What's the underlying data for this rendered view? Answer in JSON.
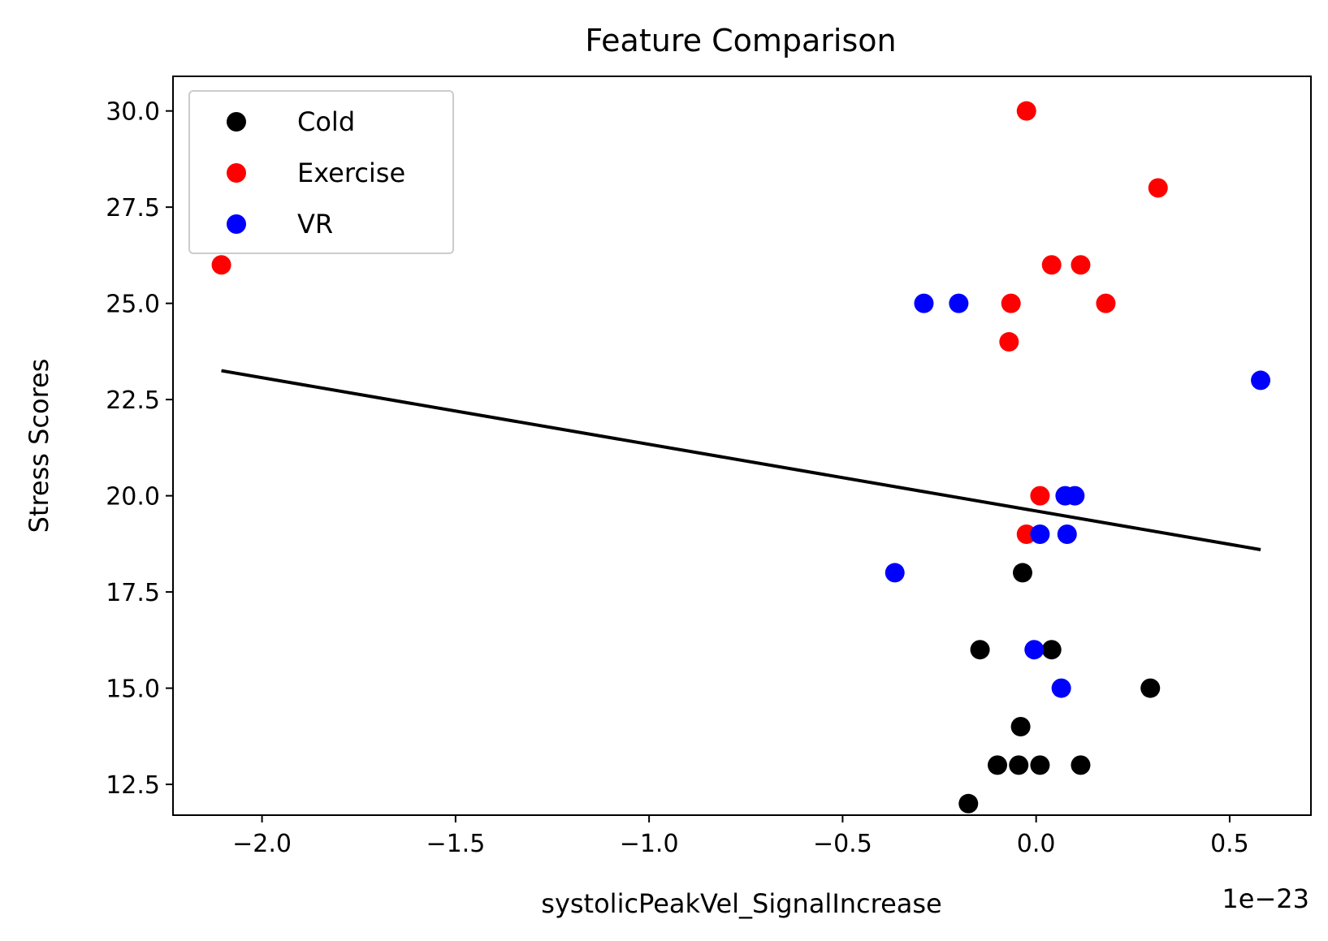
{
  "chart_data": {
    "type": "scatter",
    "title": "Feature Comparison",
    "xlabel": "systolicPeakVel_SignalIncrease",
    "ylabel": "Stress Scores",
    "x_offset_label": "1e−23",
    "xlim": [
      -2.23,
      0.71
    ],
    "ylim": [
      11.7,
      30.9
    ],
    "xticks": [
      -2.0,
      -1.5,
      -1.0,
      -0.5,
      0.0,
      0.5
    ],
    "xtick_labels": [
      "−2.0",
      "−1.5",
      "−1.0",
      "−0.5",
      "0.0",
      "0.5"
    ],
    "yticks": [
      12.5,
      15.0,
      17.5,
      20.0,
      22.5,
      25.0,
      27.5,
      30.0
    ],
    "ytick_labels": [
      "12.5",
      "15.0",
      "17.5",
      "20.0",
      "22.5",
      "25.0",
      "27.5",
      "30.0"
    ],
    "grid": false,
    "legend_position": "top-left",
    "series": [
      {
        "name": "Cold",
        "color": "#000000",
        "points": [
          {
            "x": -0.035,
            "y": 18
          },
          {
            "x": -0.145,
            "y": 16
          },
          {
            "x": 0.04,
            "y": 16
          },
          {
            "x": 0.295,
            "y": 15
          },
          {
            "x": -0.04,
            "y": 14
          },
          {
            "x": -0.1,
            "y": 13
          },
          {
            "x": -0.045,
            "y": 13
          },
          {
            "x": 0.01,
            "y": 13
          },
          {
            "x": 0.115,
            "y": 13
          },
          {
            "x": -0.175,
            "y": 12
          }
        ]
      },
      {
        "name": "Exercise",
        "color": "#ff0000",
        "points": [
          {
            "x": -0.025,
            "y": 30
          },
          {
            "x": 0.315,
            "y": 28
          },
          {
            "x": -2.105,
            "y": 26
          },
          {
            "x": 0.04,
            "y": 26
          },
          {
            "x": 0.115,
            "y": 26
          },
          {
            "x": -0.065,
            "y": 25
          },
          {
            "x": 0.18,
            "y": 25
          },
          {
            "x": -0.07,
            "y": 24
          },
          {
            "x": 0.01,
            "y": 20
          },
          {
            "x": -0.025,
            "y": 19
          }
        ]
      },
      {
        "name": "VR",
        "color": "#0000ff",
        "points": [
          {
            "x": -0.29,
            "y": 25
          },
          {
            "x": -0.2,
            "y": 25
          },
          {
            "x": 0.58,
            "y": 23
          },
          {
            "x": 0.075,
            "y": 20
          },
          {
            "x": 0.1,
            "y": 20
          },
          {
            "x": 0.01,
            "y": 19
          },
          {
            "x": 0.08,
            "y": 19
          },
          {
            "x": -0.365,
            "y": 18
          },
          {
            "x": -0.005,
            "y": 16
          },
          {
            "x": 0.065,
            "y": 15
          }
        ]
      }
    ],
    "fit_line": {
      "color": "#000000",
      "points": [
        {
          "x": -2.105,
          "y": 23.25
        },
        {
          "x": 0.58,
          "y": 18.6
        }
      ]
    }
  }
}
